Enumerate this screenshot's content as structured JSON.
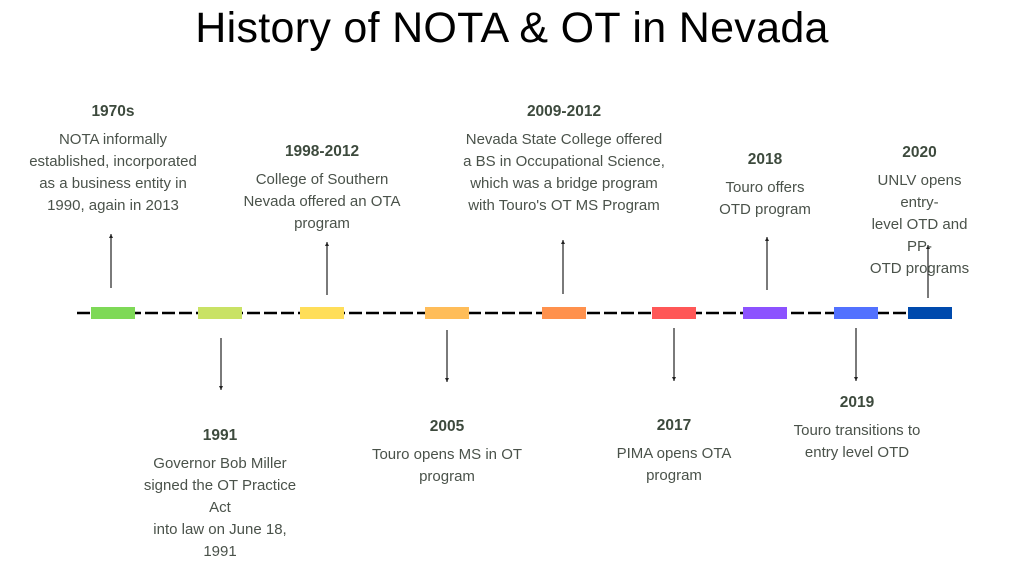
{
  "title": "History of NOTA & OT in Nevada",
  "events": [
    {
      "year": "1970s",
      "desc": [
        "NOTA informally",
        "established, incorporated",
        "as a business entity in",
        "1990, again in 2013"
      ],
      "color": "#7ed957",
      "side": "top"
    },
    {
      "year": "1991",
      "desc": [
        "Governor Bob Miller",
        "signed the OT Practice Act",
        "into law on June 18, 1991"
      ],
      "color": "#c9e265",
      "side": "bottom"
    },
    {
      "year": "1998-2012",
      "desc": [
        "College of Southern",
        "Nevada offered an OTA",
        "program"
      ],
      "color": "#ffde59",
      "side": "top"
    },
    {
      "year": "2005",
      "desc": [
        "Touro opens MS in OT",
        "program"
      ],
      "color": "#ffbd59",
      "side": "bottom"
    },
    {
      "year": "2009-2012",
      "desc": [
        "Nevada State College offered",
        "a BS in Occupational Science,",
        "which was a bridge program",
        "with Touro's OT MS Program"
      ],
      "color": "#ff914d",
      "side": "top"
    },
    {
      "year": "2017",
      "desc": [
        "PIMA opens OTA",
        "program"
      ],
      "color": "#ff5757",
      "side": "bottom"
    },
    {
      "year": "2018",
      "desc": [
        "Touro offers",
        "OTD program"
      ],
      "color": "#8c52ff",
      "side": "top"
    },
    {
      "year": "2019",
      "desc": [
        "Touro transitions to",
        "entry level OTD"
      ],
      "color": "#5271ff",
      "side": "bottom"
    },
    {
      "year": "2020",
      "desc": [
        "UNLV opens entry-",
        "level OTD and PP-",
        "OTD programs"
      ],
      "color": "#004aad",
      "side": "top"
    }
  ]
}
